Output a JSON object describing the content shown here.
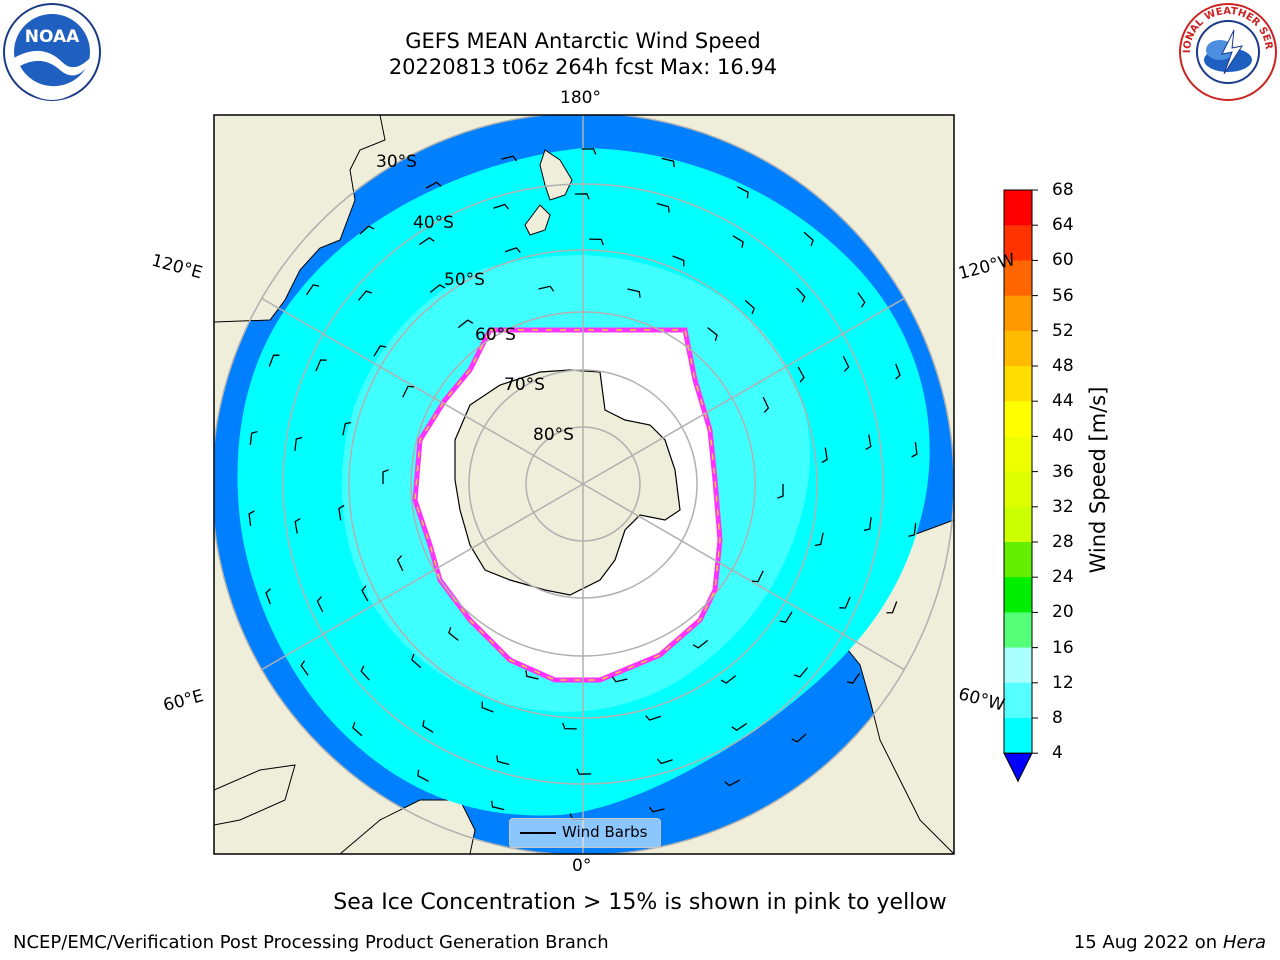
{
  "title": {
    "line1": "GEFS MEAN Antarctic Wind Speed",
    "line2": "20220813 t06z 264h fcst   Max: 16.94"
  },
  "map": {
    "projection": "south-polar-stereographic",
    "longitude_labels": {
      "top": "180°",
      "bottom": "0°",
      "upper_left": "120°E",
      "upper_right": "120°W",
      "lower_left": "60°E",
      "lower_right": "60°W"
    },
    "latitude_labels": [
      "30°S",
      "40°S",
      "50°S",
      "60°S",
      "70°S",
      "80°S"
    ],
    "colors": {
      "land": "#efeedb",
      "ocean_4_8": "#0080ff",
      "ocean_8_12": "#00ffff",
      "ocean_12_16": "#55ffff",
      "sea_ice_edge_pink": "#ff33ff",
      "sea_ice_edge_yellow": "#ffcc33",
      "gridlines": "#b0b0b0"
    },
    "legend": {
      "label": "Wind Barbs"
    }
  },
  "colorbar": {
    "label": "Wind Speed [m/s]",
    "ticks": [
      "68",
      "64",
      "60",
      "56",
      "52",
      "48",
      "44",
      "40",
      "36",
      "32",
      "28",
      "24",
      "20",
      "16",
      "12",
      "8",
      "4"
    ],
    "colors": [
      "#ff0000",
      "#ff3300",
      "#ff6600",
      "#ff9900",
      "#ffbb00",
      "#ffdd00",
      "#ffff00",
      "#eeff00",
      "#ddff00",
      "#ccff00",
      "#66ee00",
      "#00ee00",
      "#55ff77",
      "#aaffff",
      "#55ffff",
      "#00ffff",
      "#0080ff"
    ],
    "extend_color": "#0000ff"
  },
  "logos": {
    "left": {
      "name": "NOAA",
      "text": "NOAA"
    },
    "right": {
      "name": "National Weather Service",
      "text": "NATIONAL WEATHER SERVICE"
    }
  },
  "footnote": "Sea Ice Concentration > 15% is shown in pink to yellow",
  "credit_left": "NCEP/EMC/Verification Post Processing Product Generation Branch",
  "credit_right_date": "15 Aug 2022 on",
  "credit_right_machine": "Hera"
}
